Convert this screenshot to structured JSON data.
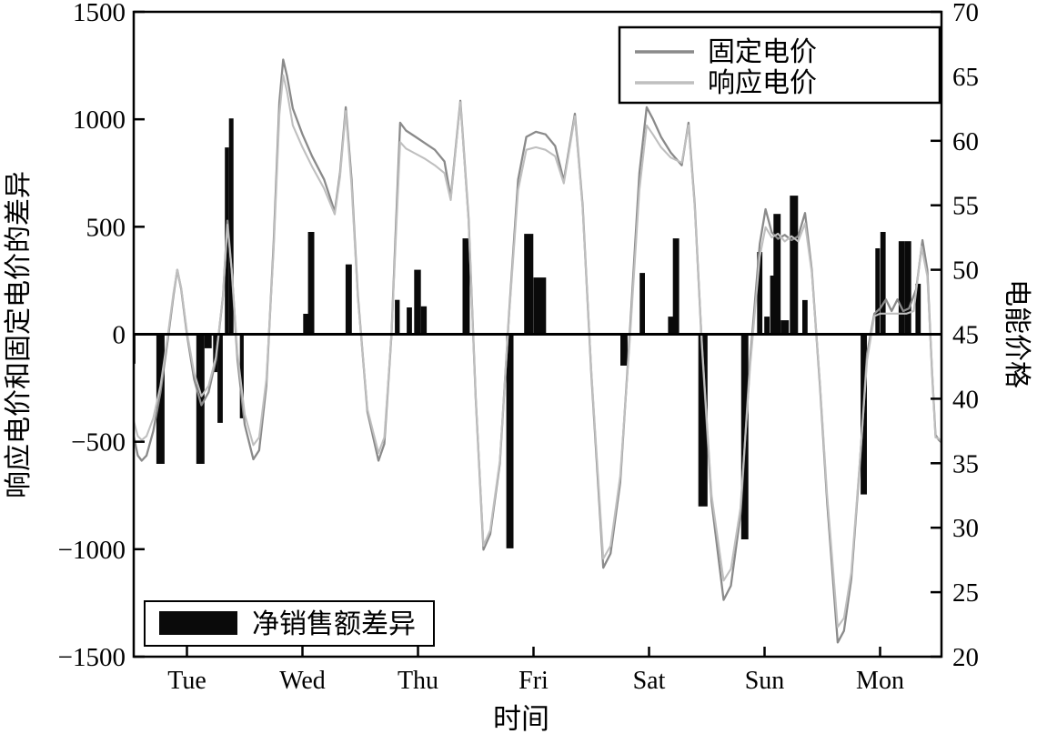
{
  "background": "#ffffff",
  "chart_data": {
    "type": "combo-bar-line",
    "title": "",
    "x_axis": {
      "label": "时间",
      "day_labels": [
        "Tue",
        "Wed",
        "Thu",
        "Fri",
        "Sat",
        "Sun",
        "Mon"
      ],
      "hours_per_day": 24,
      "total_hours": 169
    },
    "left_axis": {
      "label": "响应电价和固定电价的差异",
      "min": -1500,
      "max": 1500,
      "tick_values": [
        1500,
        1000,
        500,
        0,
        -500,
        -1000,
        -1500
      ],
      "tick_labels": [
        "1500",
        "1000",
        "500",
        "0",
        "−500",
        "−1000",
        "−1500"
      ]
    },
    "right_axis": {
      "label": "电能价格",
      "min": 20,
      "max": 70,
      "tick_values": [
        70,
        65,
        60,
        55,
        50,
        45,
        40,
        35,
        30,
        25,
        20
      ],
      "tick_labels": [
        "70",
        "65",
        "60",
        "55",
        "50",
        "45",
        "40",
        "35",
        "30",
        "25",
        "20"
      ]
    },
    "legend": {
      "fixed_label": "固定电价",
      "responsive_label": "响应电价",
      "bars_label": "净销售额差异"
    },
    "colors": {
      "fixed_line": "#8a8a8a",
      "responsive_line": "#bfbfbf",
      "bars": "#0a0a0a",
      "axis": "#000000"
    },
    "series": {
      "fixed_price": [
        [
          1.0,
          37.0
        ],
        [
          1.8,
          35.6
        ],
        [
          2.6,
          35.2
        ],
        [
          3.6,
          35.6
        ],
        [
          5.0,
          37.5
        ],
        [
          6.5,
          40.5
        ],
        [
          8.0,
          44.5
        ],
        [
          9.2,
          48.0
        ],
        [
          10.0,
          50.0
        ],
        [
          10.8,
          48.5
        ],
        [
          12.0,
          45.0
        ],
        [
          13.5,
          41.5
        ],
        [
          15.0,
          39.5
        ],
        [
          16.5,
          40.5
        ],
        [
          18.0,
          43.0
        ],
        [
          19.5,
          48.0
        ],
        [
          20.4,
          53.8
        ],
        [
          21.3,
          50.0
        ],
        [
          22.5,
          43.0
        ],
        [
          24.0,
          38.0
        ],
        [
          25.8,
          35.3
        ],
        [
          27.0,
          36.0
        ],
        [
          28.5,
          41.0
        ],
        [
          30.0,
          52.0
        ],
        [
          31.2,
          63.0
        ],
        [
          32.0,
          66.3
        ],
        [
          32.8,
          65.0
        ],
        [
          34.0,
          62.5
        ],
        [
          36.0,
          60.5
        ],
        [
          38.0,
          58.8
        ],
        [
          40.5,
          57.0
        ],
        [
          42.7,
          54.5
        ],
        [
          43.8,
          57.5
        ],
        [
          45.0,
          62.6
        ],
        [
          46.2,
          57.0
        ],
        [
          47.5,
          48.0
        ],
        [
          49.5,
          39.0
        ],
        [
          51.8,
          35.2
        ],
        [
          53.0,
          36.5
        ],
        [
          54.5,
          45.0
        ],
        [
          56.3,
          61.4
        ],
        [
          57.5,
          60.8
        ],
        [
          59.5,
          60.3
        ],
        [
          61.5,
          59.8
        ],
        [
          63.5,
          59.3
        ],
        [
          65.5,
          58.4
        ],
        [
          66.8,
          55.6
        ],
        [
          68.8,
          63.1
        ],
        [
          70.5,
          54.0
        ],
        [
          72.0,
          40.0
        ],
        [
          73.6,
          28.3
        ],
        [
          75.0,
          29.5
        ],
        [
          77.0,
          35.0
        ],
        [
          79.0,
          47.0
        ],
        [
          80.8,
          57.0
        ],
        [
          82.5,
          60.3
        ],
        [
          84.5,
          60.7
        ],
        [
          86.5,
          60.5
        ],
        [
          88.5,
          59.6
        ],
        [
          90.3,
          56.9
        ],
        [
          92.6,
          62.1
        ],
        [
          94.2,
          55.0
        ],
        [
          96.0,
          42.0
        ],
        [
          98.5,
          26.9
        ],
        [
          100.0,
          28.0
        ],
        [
          102.0,
          33.5
        ],
        [
          104.0,
          45.0
        ],
        [
          106.0,
          57.5
        ],
        [
          107.5,
          62.6
        ],
        [
          108.8,
          61.7
        ],
        [
          110.5,
          60.3
        ],
        [
          112.5,
          59.1
        ],
        [
          114.8,
          58.1
        ],
        [
          116.2,
          61.4
        ],
        [
          117.5,
          55.0
        ],
        [
          119.0,
          44.0
        ],
        [
          121.0,
          32.0
        ],
        [
          123.5,
          24.4
        ],
        [
          125.0,
          25.5
        ],
        [
          127.0,
          31.0
        ],
        [
          129.0,
          43.0
        ],
        [
          131.0,
          52.0
        ],
        [
          132.2,
          54.7
        ],
        [
          133.5,
          52.9
        ],
        [
          134.8,
          52.4
        ],
        [
          136.2,
          52.7
        ],
        [
          137.6,
          52.3
        ],
        [
          139.0,
          52.6
        ],
        [
          140.4,
          54.4
        ],
        [
          141.8,
          50.0
        ],
        [
          143.5,
          41.0
        ],
        [
          145.0,
          32.0
        ],
        [
          147.2,
          21.1
        ],
        [
          148.5,
          22.0
        ],
        [
          150.0,
          26.0
        ],
        [
          151.8,
          35.0
        ],
        [
          153.3,
          43.5
        ],
        [
          154.8,
          46.6
        ],
        [
          156.0,
          47.0
        ],
        [
          157.2,
          47.7
        ],
        [
          158.4,
          46.8
        ],
        [
          159.6,
          47.7
        ],
        [
          160.8,
          46.8
        ],
        [
          162.0,
          47.0
        ],
        [
          163.5,
          48.5
        ],
        [
          164.8,
          52.3
        ],
        [
          165.8,
          50.0
        ],
        [
          166.8,
          42.0
        ],
        [
          167.5,
          37.2
        ],
        [
          168.2,
          36.8
        ],
        [
          168.8,
          36.6
        ]
      ],
      "responsive_price": [
        [
          1.0,
          38.2
        ],
        [
          1.8,
          37.1
        ],
        [
          2.6,
          36.8
        ],
        [
          3.6,
          37.1
        ],
        [
          5.0,
          38.5
        ],
        [
          6.5,
          41.0
        ],
        [
          8.0,
          44.8
        ],
        [
          9.2,
          48.2
        ],
        [
          10.0,
          50.0
        ],
        [
          10.8,
          48.6
        ],
        [
          12.0,
          45.2
        ],
        [
          13.5,
          42.0
        ],
        [
          15.0,
          40.2
        ],
        [
          16.5,
          41.0
        ],
        [
          18.0,
          43.2
        ],
        [
          19.5,
          48.0
        ],
        [
          20.4,
          53.5
        ],
        [
          21.3,
          50.0
        ],
        [
          22.5,
          43.5
        ],
        [
          24.0,
          38.8
        ],
        [
          25.8,
          36.4
        ],
        [
          27.0,
          37.0
        ],
        [
          28.5,
          41.5
        ],
        [
          30.0,
          51.5
        ],
        [
          31.2,
          62.0
        ],
        [
          32.0,
          65.1
        ],
        [
          32.8,
          63.8
        ],
        [
          34.0,
          61.2
        ],
        [
          36.0,
          59.5
        ],
        [
          38.0,
          58.0
        ],
        [
          40.5,
          56.3
        ],
        [
          42.7,
          54.3
        ],
        [
          43.8,
          57.2
        ],
        [
          45.0,
          62.3
        ],
        [
          46.2,
          56.5
        ],
        [
          47.5,
          47.8
        ],
        [
          49.5,
          39.2
        ],
        [
          51.8,
          35.8
        ],
        [
          53.0,
          37.0
        ],
        [
          54.5,
          45.0
        ],
        [
          56.3,
          59.9
        ],
        [
          57.5,
          59.4
        ],
        [
          59.5,
          59.0
        ],
        [
          61.5,
          58.6
        ],
        [
          63.5,
          58.1
        ],
        [
          65.5,
          57.5
        ],
        [
          66.8,
          55.4
        ],
        [
          68.8,
          63.0
        ],
        [
          70.5,
          53.8
        ],
        [
          72.0,
          40.0
        ],
        [
          73.6,
          28.6
        ],
        [
          75.0,
          29.8
        ],
        [
          77.0,
          35.2
        ],
        [
          79.0,
          46.8
        ],
        [
          80.8,
          56.2
        ],
        [
          82.5,
          59.3
        ],
        [
          84.5,
          59.5
        ],
        [
          86.5,
          59.3
        ],
        [
          88.5,
          58.8
        ],
        [
          90.3,
          56.7
        ],
        [
          92.6,
          61.9
        ],
        [
          94.2,
          54.8
        ],
        [
          96.0,
          42.2
        ],
        [
          98.5,
          27.6
        ],
        [
          100.0,
          28.6
        ],
        [
          102.0,
          34.0
        ],
        [
          104.0,
          44.5
        ],
        [
          106.0,
          56.2
        ],
        [
          107.5,
          61.2
        ],
        [
          108.8,
          60.5
        ],
        [
          110.5,
          59.5
        ],
        [
          112.5,
          58.7
        ],
        [
          114.8,
          58.3
        ],
        [
          116.2,
          61.2
        ],
        [
          117.5,
          54.8
        ],
        [
          119.0,
          44.2
        ],
        [
          121.0,
          32.5
        ],
        [
          123.5,
          25.9
        ],
        [
          125.0,
          26.8
        ],
        [
          127.0,
          31.5
        ],
        [
          129.0,
          42.5
        ],
        [
          131.0,
          51.0
        ],
        [
          132.2,
          53.3
        ],
        [
          133.5,
          52.5
        ],
        [
          134.8,
          52.8
        ],
        [
          136.2,
          52.2
        ],
        [
          137.6,
          52.6
        ],
        [
          139.0,
          52.2
        ],
        [
          140.4,
          53.6
        ],
        [
          141.8,
          49.8
        ],
        [
          143.5,
          41.2
        ],
        [
          145.0,
          32.5
        ],
        [
          147.2,
          22.3
        ],
        [
          148.5,
          23.0
        ],
        [
          150.0,
          26.5
        ],
        [
          151.8,
          35.2
        ],
        [
          153.3,
          43.0
        ],
        [
          154.8,
          46.4
        ],
        [
          156.0,
          46.6
        ],
        [
          157.2,
          46.6
        ],
        [
          158.4,
          46.6
        ],
        [
          160.0,
          46.6
        ],
        [
          161.5,
          46.6
        ],
        [
          163.0,
          46.8
        ],
        [
          164.6,
          51.8
        ],
        [
          165.8,
          49.5
        ],
        [
          166.8,
          42.2
        ],
        [
          167.5,
          37.0
        ],
        [
          168.2,
          36.9
        ],
        [
          168.8,
          36.7
        ]
      ]
    },
    "bars_net_sales_diff": [
      [
        0.75,
        -137,
        1.1
      ],
      [
        6.5,
        -603,
        1.7
      ],
      [
        14.8,
        -603,
        1.7
      ],
      [
        16.4,
        -65,
        1.5
      ],
      [
        17.9,
        -176,
        0.9
      ],
      [
        18.9,
        -412,
        1.1
      ],
      [
        20.3,
        869,
        0.85
      ],
      [
        21.2,
        1004,
        0.95
      ],
      [
        23.4,
        -391,
        0.8
      ],
      [
        36.7,
        95,
        1.1
      ],
      [
        37.8,
        476,
        1.3
      ],
      [
        45.6,
        325,
        1.3
      ],
      [
        55.7,
        160,
        1.0
      ],
      [
        58.2,
        125,
        1.1
      ],
      [
        59.9,
        300,
        1.4
      ],
      [
        61.2,
        130,
        1.2
      ],
      [
        70.0,
        446,
        1.5
      ],
      [
        79.1,
        -996,
        1.5
      ],
      [
        83.0,
        467,
        1.9
      ],
      [
        85.3,
        264,
        2.6
      ],
      [
        102.8,
        -146,
        1.5
      ],
      [
        106.6,
        285,
        1.1
      ],
      [
        112.8,
        82,
        1.7
      ],
      [
        113.6,
        446,
        1.3
      ],
      [
        119.2,
        -801,
        1.9
      ],
      [
        127.9,
        -954,
        1.5
      ],
      [
        131.0,
        383,
        1.1
      ],
      [
        132.5,
        82,
        1.1
      ],
      [
        133.7,
        273,
        1.1
      ],
      [
        134.6,
        560,
        1.5
      ],
      [
        136.2,
        65,
        1.7
      ],
      [
        138.1,
        645,
        1.7
      ],
      [
        140.4,
        159,
        1.1
      ],
      [
        152.6,
        -745,
        1.3
      ],
      [
        155.5,
        400,
        0.95
      ],
      [
        156.6,
        476,
        1.1
      ],
      [
        160.5,
        433,
        1.3
      ],
      [
        161.8,
        433,
        1.3
      ],
      [
        163.9,
        235,
        1.1
      ]
    ]
  }
}
